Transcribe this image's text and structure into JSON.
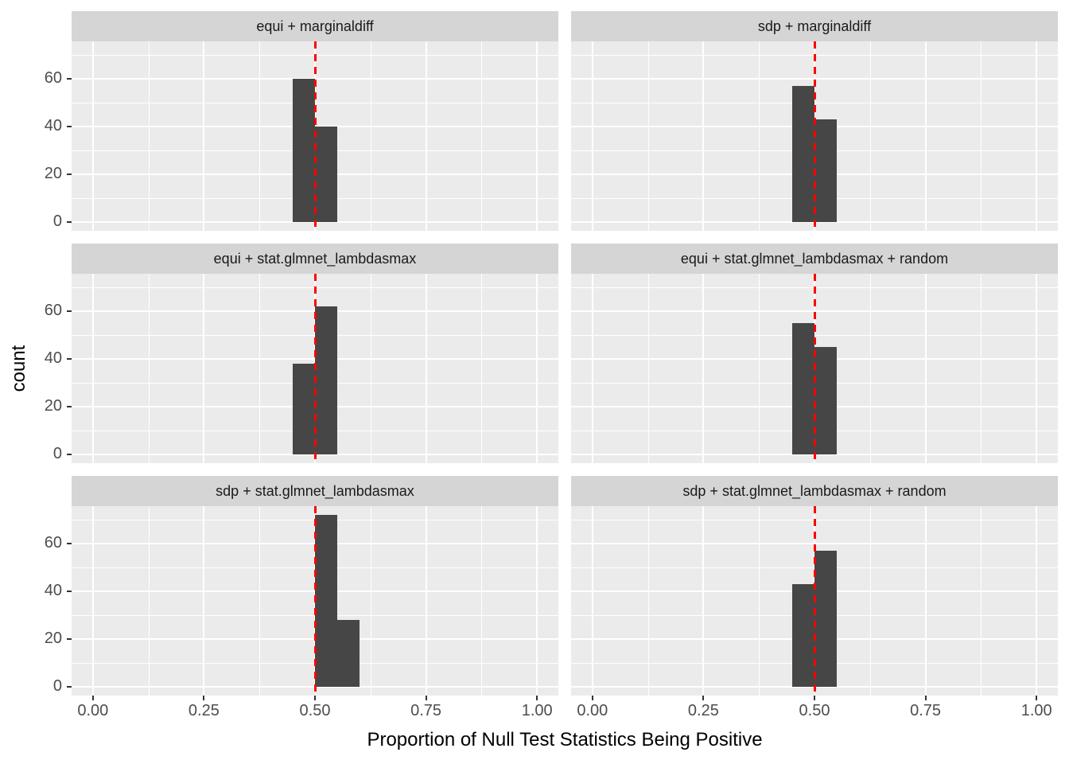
{
  "figure": {
    "kind": "ggplot-style faceted histogram",
    "background": "#FFFFFF"
  },
  "chart_data": {
    "type": "bar",
    "subtype": "faceted_histogram",
    "xlabel": "Proportion of Null Test Statistics Being Positive",
    "ylabel": "count",
    "xlim": [
      -0.048,
      1.048
    ],
    "ylim": [
      -3.6,
      75.6
    ],
    "x_major_ticks": [
      0,
      0.25,
      0.5,
      0.75,
      1.0
    ],
    "x_tick_labels": [
      "0.00",
      "0.25",
      "0.50",
      "0.75",
      "1.00"
    ],
    "x_minor_breaks": [
      0.125,
      0.375,
      0.625,
      0.875
    ],
    "y_major_ticks": [
      0,
      20,
      40,
      60
    ],
    "y_tick_labels": [
      "0",
      "20",
      "40",
      "60"
    ],
    "y_minor_breaks": [
      10,
      30,
      50,
      70
    ],
    "binwidth": 0.05,
    "reference_line_x": 0.5,
    "grid": true,
    "legend": "none",
    "facets": [
      {
        "label": "equi + marginaldiff",
        "row": 0,
        "col": 0,
        "bars": [
          {
            "x0": 0.45,
            "x1": 0.5,
            "count": 60
          },
          {
            "x0": 0.5,
            "x1": 0.55,
            "count": 40
          }
        ]
      },
      {
        "label": "sdp + marginaldiff",
        "row": 0,
        "col": 1,
        "bars": [
          {
            "x0": 0.45,
            "x1": 0.5,
            "count": 57
          },
          {
            "x0": 0.5,
            "x1": 0.55,
            "count": 43
          }
        ]
      },
      {
        "label": "equi + stat.glmnet_lambdasmax",
        "row": 1,
        "col": 0,
        "bars": [
          {
            "x0": 0.45,
            "x1": 0.5,
            "count": 38
          },
          {
            "x0": 0.5,
            "x1": 0.55,
            "count": 62
          }
        ]
      },
      {
        "label": "equi + stat.glmnet_lambdasmax + random",
        "row": 1,
        "col": 1,
        "bars": [
          {
            "x0": 0.45,
            "x1": 0.5,
            "count": 55
          },
          {
            "x0": 0.5,
            "x1": 0.55,
            "count": 45
          }
        ]
      },
      {
        "label": "sdp + stat.glmnet_lambdasmax",
        "row": 2,
        "col": 0,
        "bars": [
          {
            "x0": 0.5,
            "x1": 0.55,
            "count": 72
          },
          {
            "x0": 0.55,
            "x1": 0.6,
            "count": 28
          }
        ]
      },
      {
        "label": "sdp + stat.glmnet_lambdasmax + random",
        "row": 2,
        "col": 1,
        "bars": [
          {
            "x0": 0.45,
            "x1": 0.5,
            "count": 43
          },
          {
            "x0": 0.5,
            "x1": 0.55,
            "count": 57
          }
        ]
      }
    ],
    "colors": {
      "bar": "#464646",
      "panel_background": "#EBEBEB",
      "strip_background": "#D5D5D5",
      "gridline": "#FFFFFF",
      "reference_line": "#FF0000",
      "tick_mark": "#333333",
      "tick_label": "#4D4D4D",
      "axis_title": "#000000"
    }
  }
}
